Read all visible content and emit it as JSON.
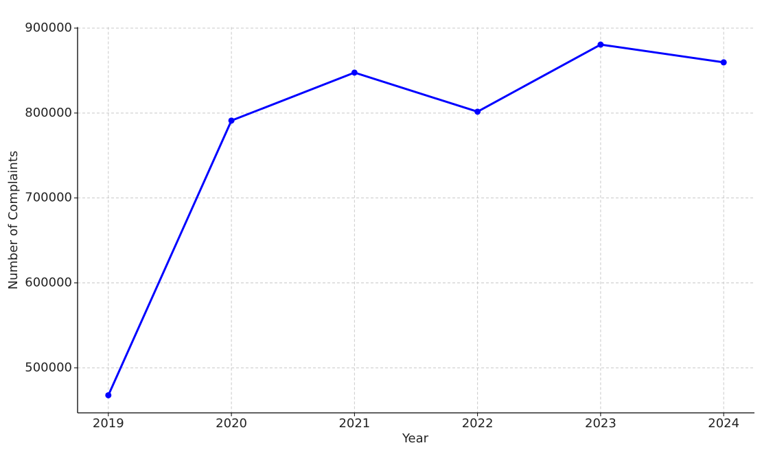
{
  "chart_data": {
    "type": "line",
    "x_label": "Year",
    "y_label": "Number of Complaints",
    "x": [
      2019,
      2020,
      2021,
      2022,
      2023,
      2024
    ],
    "series": [
      {
        "color": "#0000ff",
        "values": [
          467700,
          791100,
          847600,
          801600,
          880600,
          859700
        ]
      }
    ],
    "xlim": [
      2018.75,
      2024.25
    ],
    "xticks": [
      2019,
      2020,
      2021,
      2022,
      2023,
      2024
    ],
    "ylim": [
      447000,
      901200
    ],
    "yticks": [
      500000,
      600000,
      700000,
      800000,
      900000
    ],
    "grid": true
  }
}
